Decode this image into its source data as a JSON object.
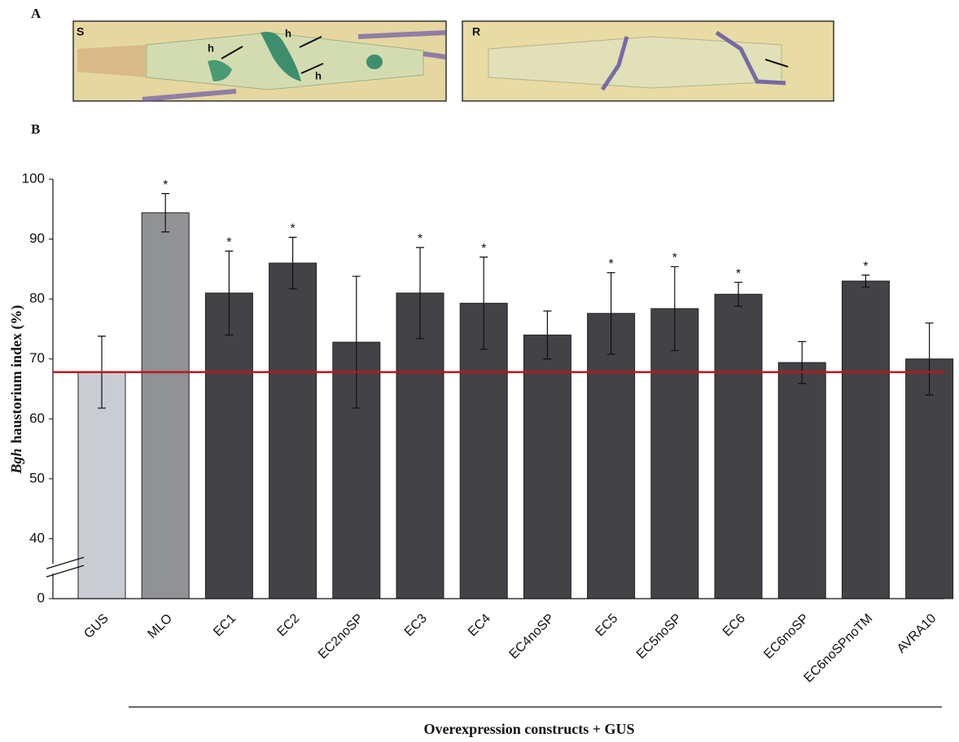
{
  "figure": {
    "panel_a_label": "A",
    "panel_b_label": "B",
    "image_labels": [
      "S",
      "R"
    ],
    "arrow_labels": [
      "h",
      "h",
      "h"
    ]
  },
  "chart_data": {
    "type": "bar",
    "ylabel_italic": "Bgh",
    "ylabel": "haustorium index (%)",
    "xlabel": "Overexpression constructs + GUS",
    "categories": [
      "GUS",
      "MLO",
      "EC1",
      "EC2",
      "EC2noSP",
      "EC3",
      "EC4",
      "EC4noSP",
      "EC5",
      "EC5noSP",
      "EC6",
      "EC6noSP",
      "EC6noSPnoTM",
      "AVRA10"
    ],
    "values": [
      67.8,
      94.4,
      81,
      86,
      72.8,
      81,
      79.3,
      74,
      77.6,
      78.4,
      80.8,
      69.4,
      83,
      70
    ],
    "errors": [
      6,
      3.2,
      7,
      4.3,
      11,
      7.6,
      7.7,
      4,
      6.8,
      7,
      2,
      3.5,
      1,
      6
    ],
    "significance": [
      null,
      "*",
      "*",
      "*",
      null,
      "*",
      "*",
      null,
      "*",
      "*",
      "*",
      null,
      "*",
      null
    ],
    "colors": [
      "#c9ccd2",
      "#909296",
      "#434347",
      "#434347",
      "#434347",
      "#434347",
      "#434347",
      "#434347",
      "#434347",
      "#434347",
      "#434347",
      "#434347",
      "#434347",
      "#434347"
    ],
    "reference_line": {
      "value": 67.8,
      "color": "#c0141c"
    },
    "ylim": [
      0,
      100
    ],
    "yticks": [
      0,
      40,
      50,
      60,
      70,
      80,
      90,
      100
    ],
    "y_break": true,
    "grid": false
  }
}
